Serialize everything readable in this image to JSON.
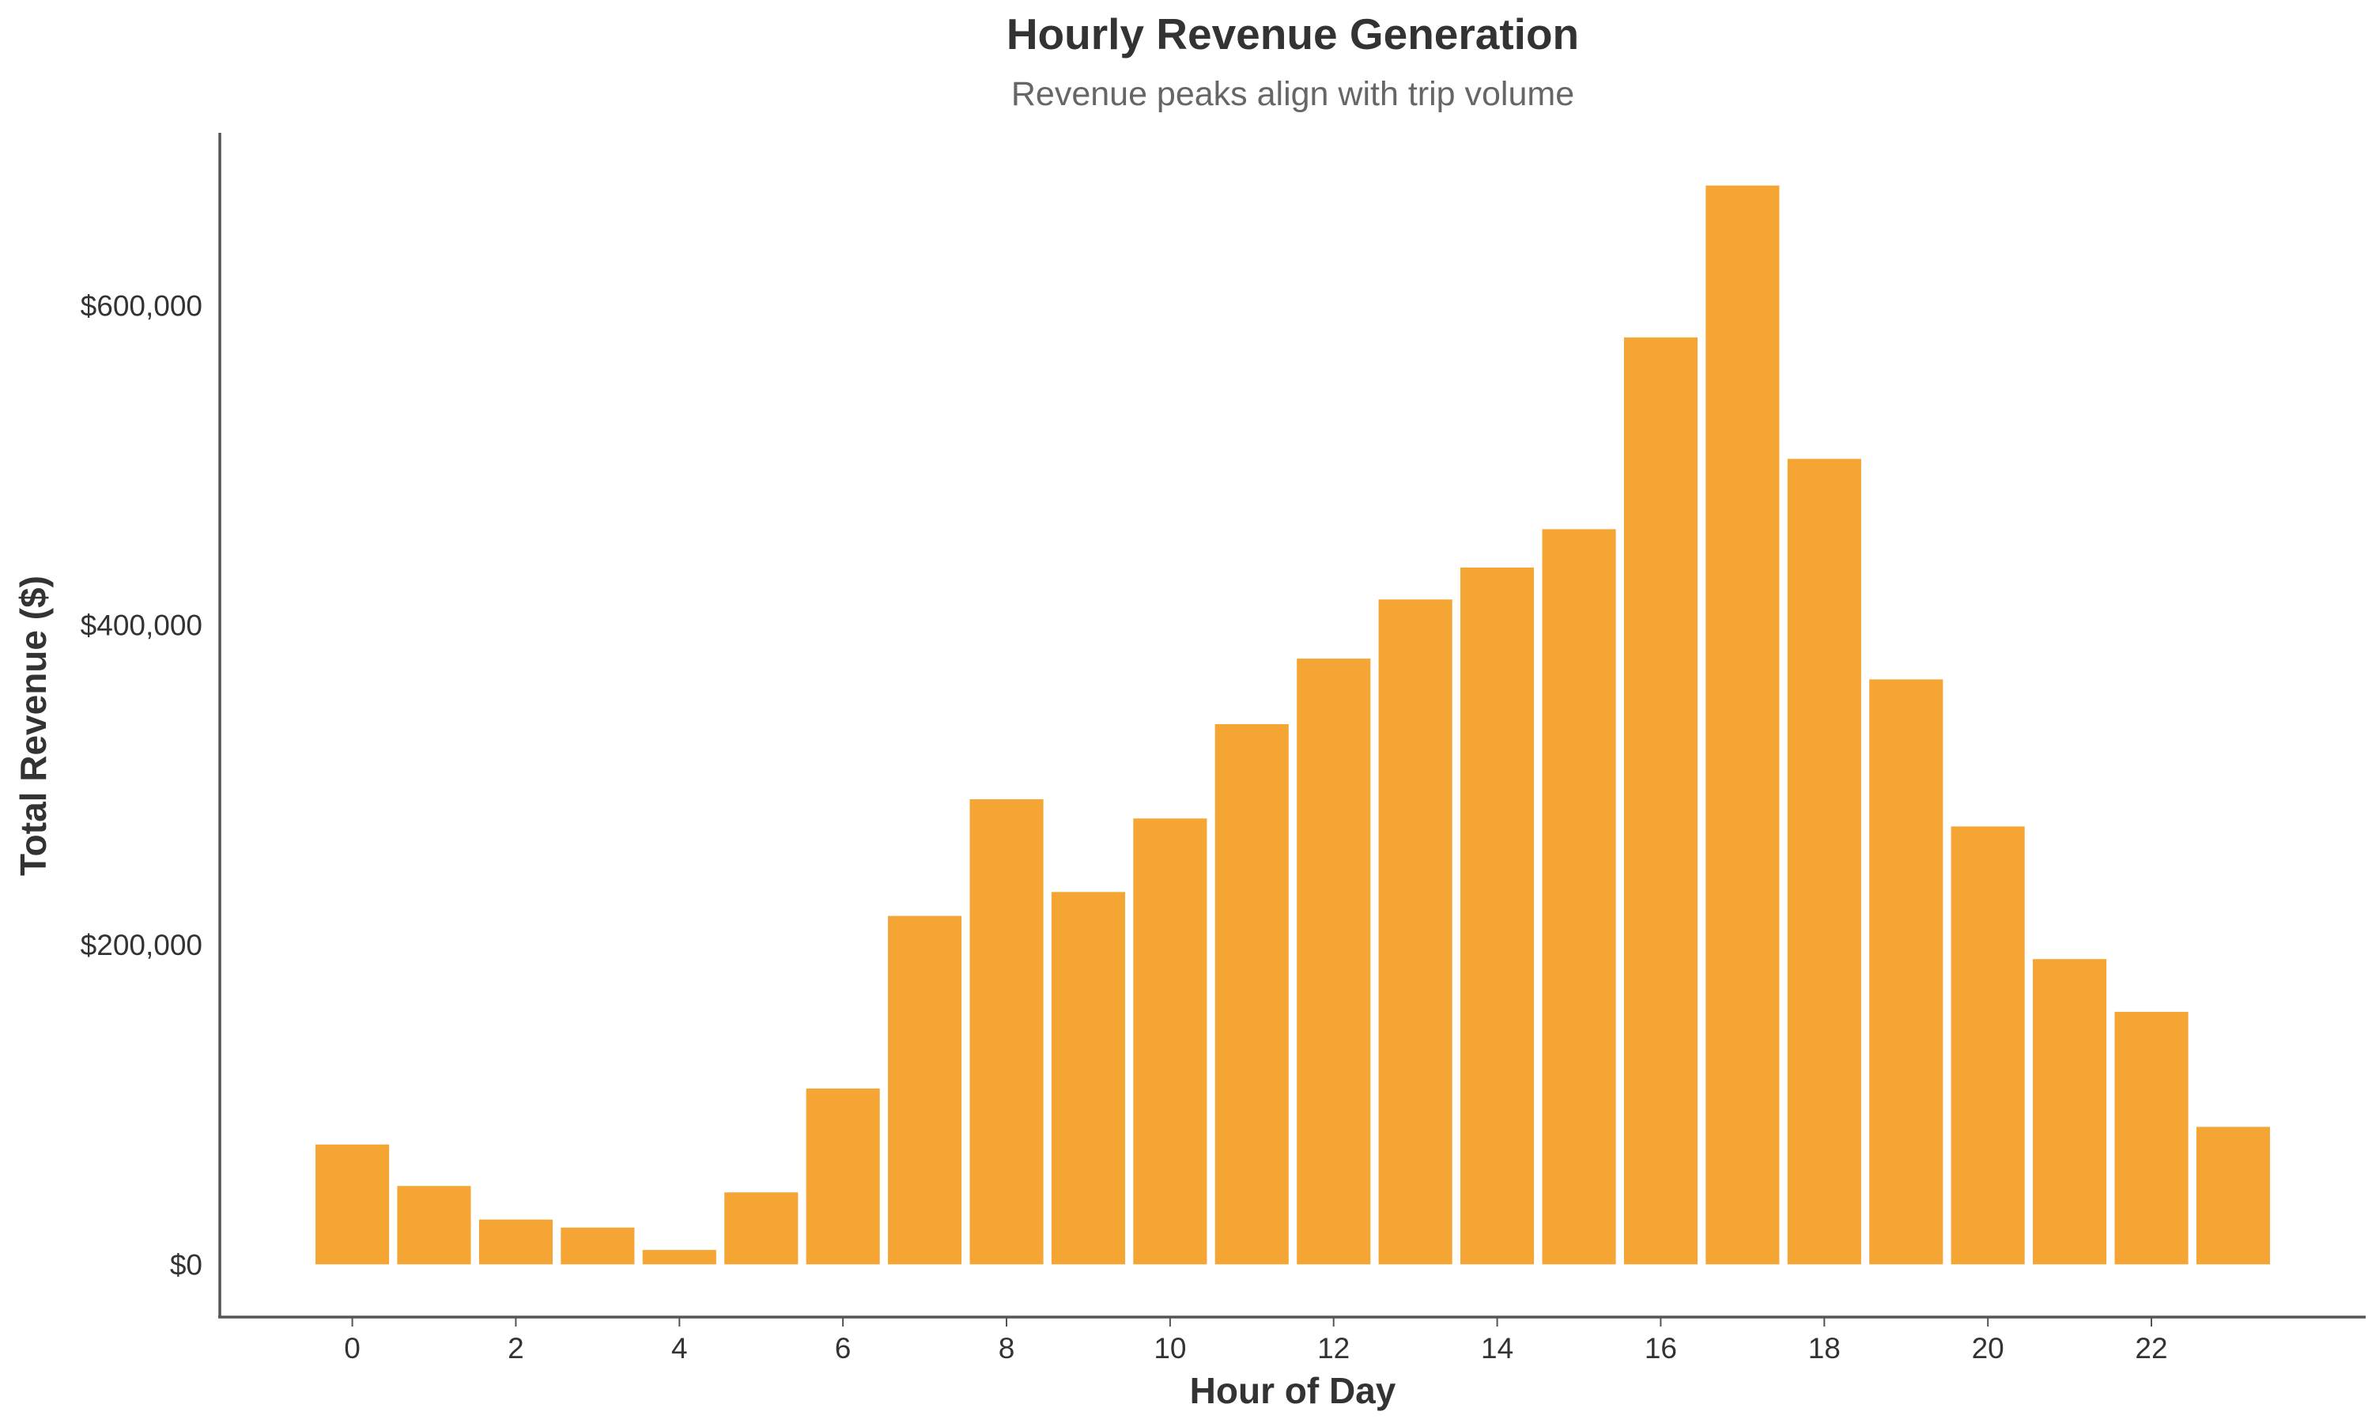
{
  "chart_data": {
    "type": "bar",
    "title": "Hourly Revenue Generation",
    "subtitle": "Revenue peaks align with trip volume",
    "xlabel": "Hour of Day",
    "ylabel": "Total Revenue ($)",
    "categories": [
      0,
      1,
      2,
      3,
      4,
      5,
      6,
      7,
      8,
      9,
      10,
      11,
      12,
      13,
      14,
      15,
      16,
      17,
      18,
      19,
      20,
      21,
      22,
      23
    ],
    "values": [
      75000,
      49000,
      28000,
      23000,
      9000,
      45000,
      110000,
      218000,
      291000,
      233000,
      279000,
      338000,
      379000,
      416000,
      436000,
      460000,
      580000,
      675000,
      504000,
      366000,
      274000,
      191000,
      158000,
      86000
    ],
    "x_tick_labels": [
      "0",
      "2",
      "4",
      "6",
      "8",
      "10",
      "12",
      "14",
      "16",
      "18",
      "20",
      "22"
    ],
    "x_tick_values": [
      0,
      2,
      4,
      6,
      8,
      10,
      12,
      14,
      16,
      18,
      20,
      22
    ],
    "y_tick_labels": [
      "$0",
      "$200,000",
      "$400,000",
      "$600,000"
    ],
    "y_tick_values": [
      0,
      200000,
      400000,
      600000
    ],
    "ylim": [
      -33000,
      708000
    ],
    "xlim": [
      -1.62,
      24.62
    ],
    "bar_color": "#F4A534",
    "grid": false,
    "legend": "none"
  }
}
